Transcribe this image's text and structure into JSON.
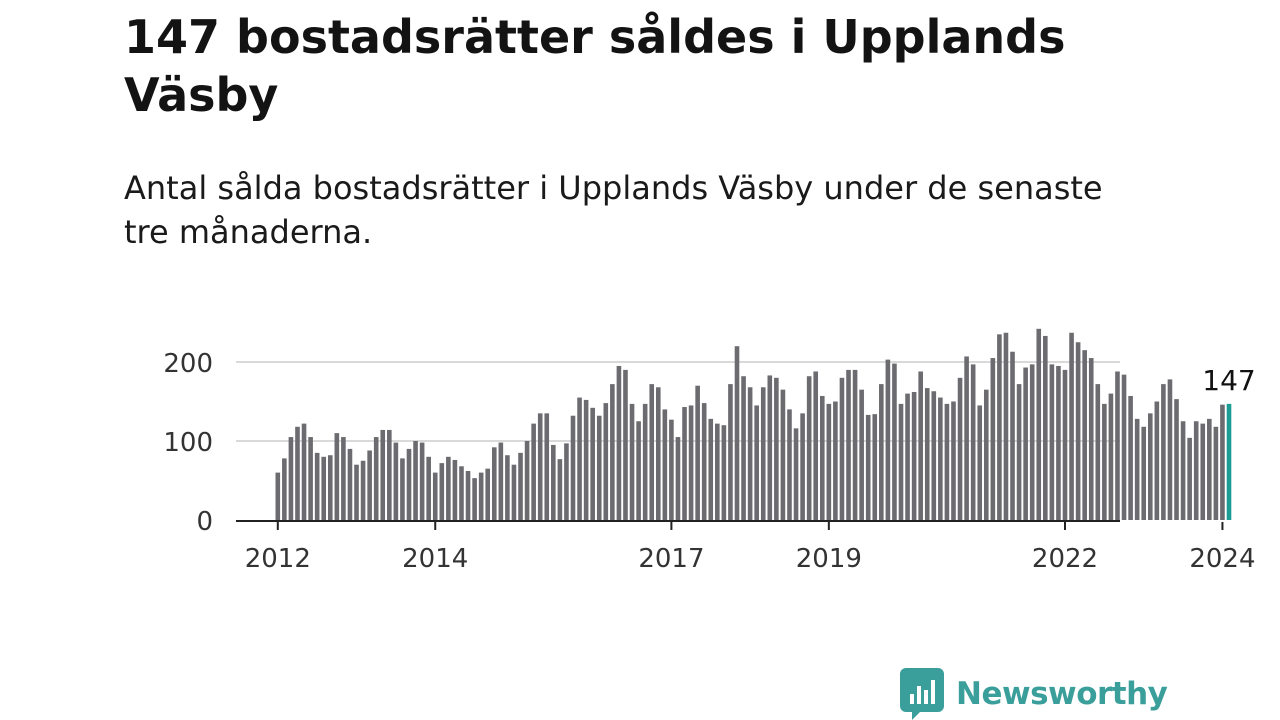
{
  "title": "147 bostadsrätter såldes i Upplands Väsby",
  "subtitle": "Antal sålda bostadsrätter i Upplands Väsby under de senaste tre månaderna.",
  "brand": {
    "name": "Newsworthy",
    "icon": "newsworthy-logo-icon",
    "color": "#3a9e9a"
  },
  "colors": {
    "bar": "#6b6b70",
    "highlight": "#1b9c95",
    "grid": "#d9d9d9",
    "axis": "#222222"
  },
  "chart_data": {
    "type": "bar",
    "x_unit": "month",
    "x_start": "2012-01",
    "x_end": "2024-02",
    "ylim": [
      0,
      240
    ],
    "yticks": [
      0,
      100,
      200
    ],
    "xtick_labels": [
      "2012",
      "2014",
      "2017",
      "2019",
      "2022",
      "2024"
    ],
    "xtick_years": [
      2012,
      2014,
      2017,
      2019,
      2022,
      2024
    ],
    "highlight_label": "147",
    "values": [
      60,
      78,
      105,
      118,
      122,
      105,
      85,
      80,
      82,
      110,
      105,
      90,
      70,
      75,
      88,
      105,
      114,
      114,
      98,
      78,
      90,
      100,
      98,
      80,
      60,
      72,
      80,
      76,
      68,
      62,
      53,
      60,
      65,
      92,
      98,
      82,
      70,
      85,
      100,
      122,
      135,
      135,
      95,
      77,
      97,
      132,
      155,
      152,
      142,
      132,
      148,
      172,
      195,
      190,
      147,
      125,
      147,
      172,
      168,
      140,
      127,
      105,
      143,
      145,
      170,
      148,
      128,
      122,
      120,
      172,
      220,
      182,
      168,
      145,
      168,
      183,
      180,
      165,
      140,
      116,
      135,
      182,
      188,
      157,
      147,
      150,
      180,
      190,
      190,
      165,
      133,
      134,
      172,
      203,
      198,
      147,
      160,
      162,
      188,
      167,
      163,
      155,
      147,
      150,
      180,
      207,
      197,
      145,
      165,
      205,
      235,
      237,
      213,
      172,
      193,
      197,
      242,
      233,
      197,
      195,
      190,
      237,
      225,
      215,
      205,
      172,
      147,
      160,
      188,
      184,
      157,
      128,
      118,
      135,
      150,
      172,
      178,
      153,
      125,
      104,
      125,
      122,
      128,
      118,
      146,
      147
    ]
  }
}
